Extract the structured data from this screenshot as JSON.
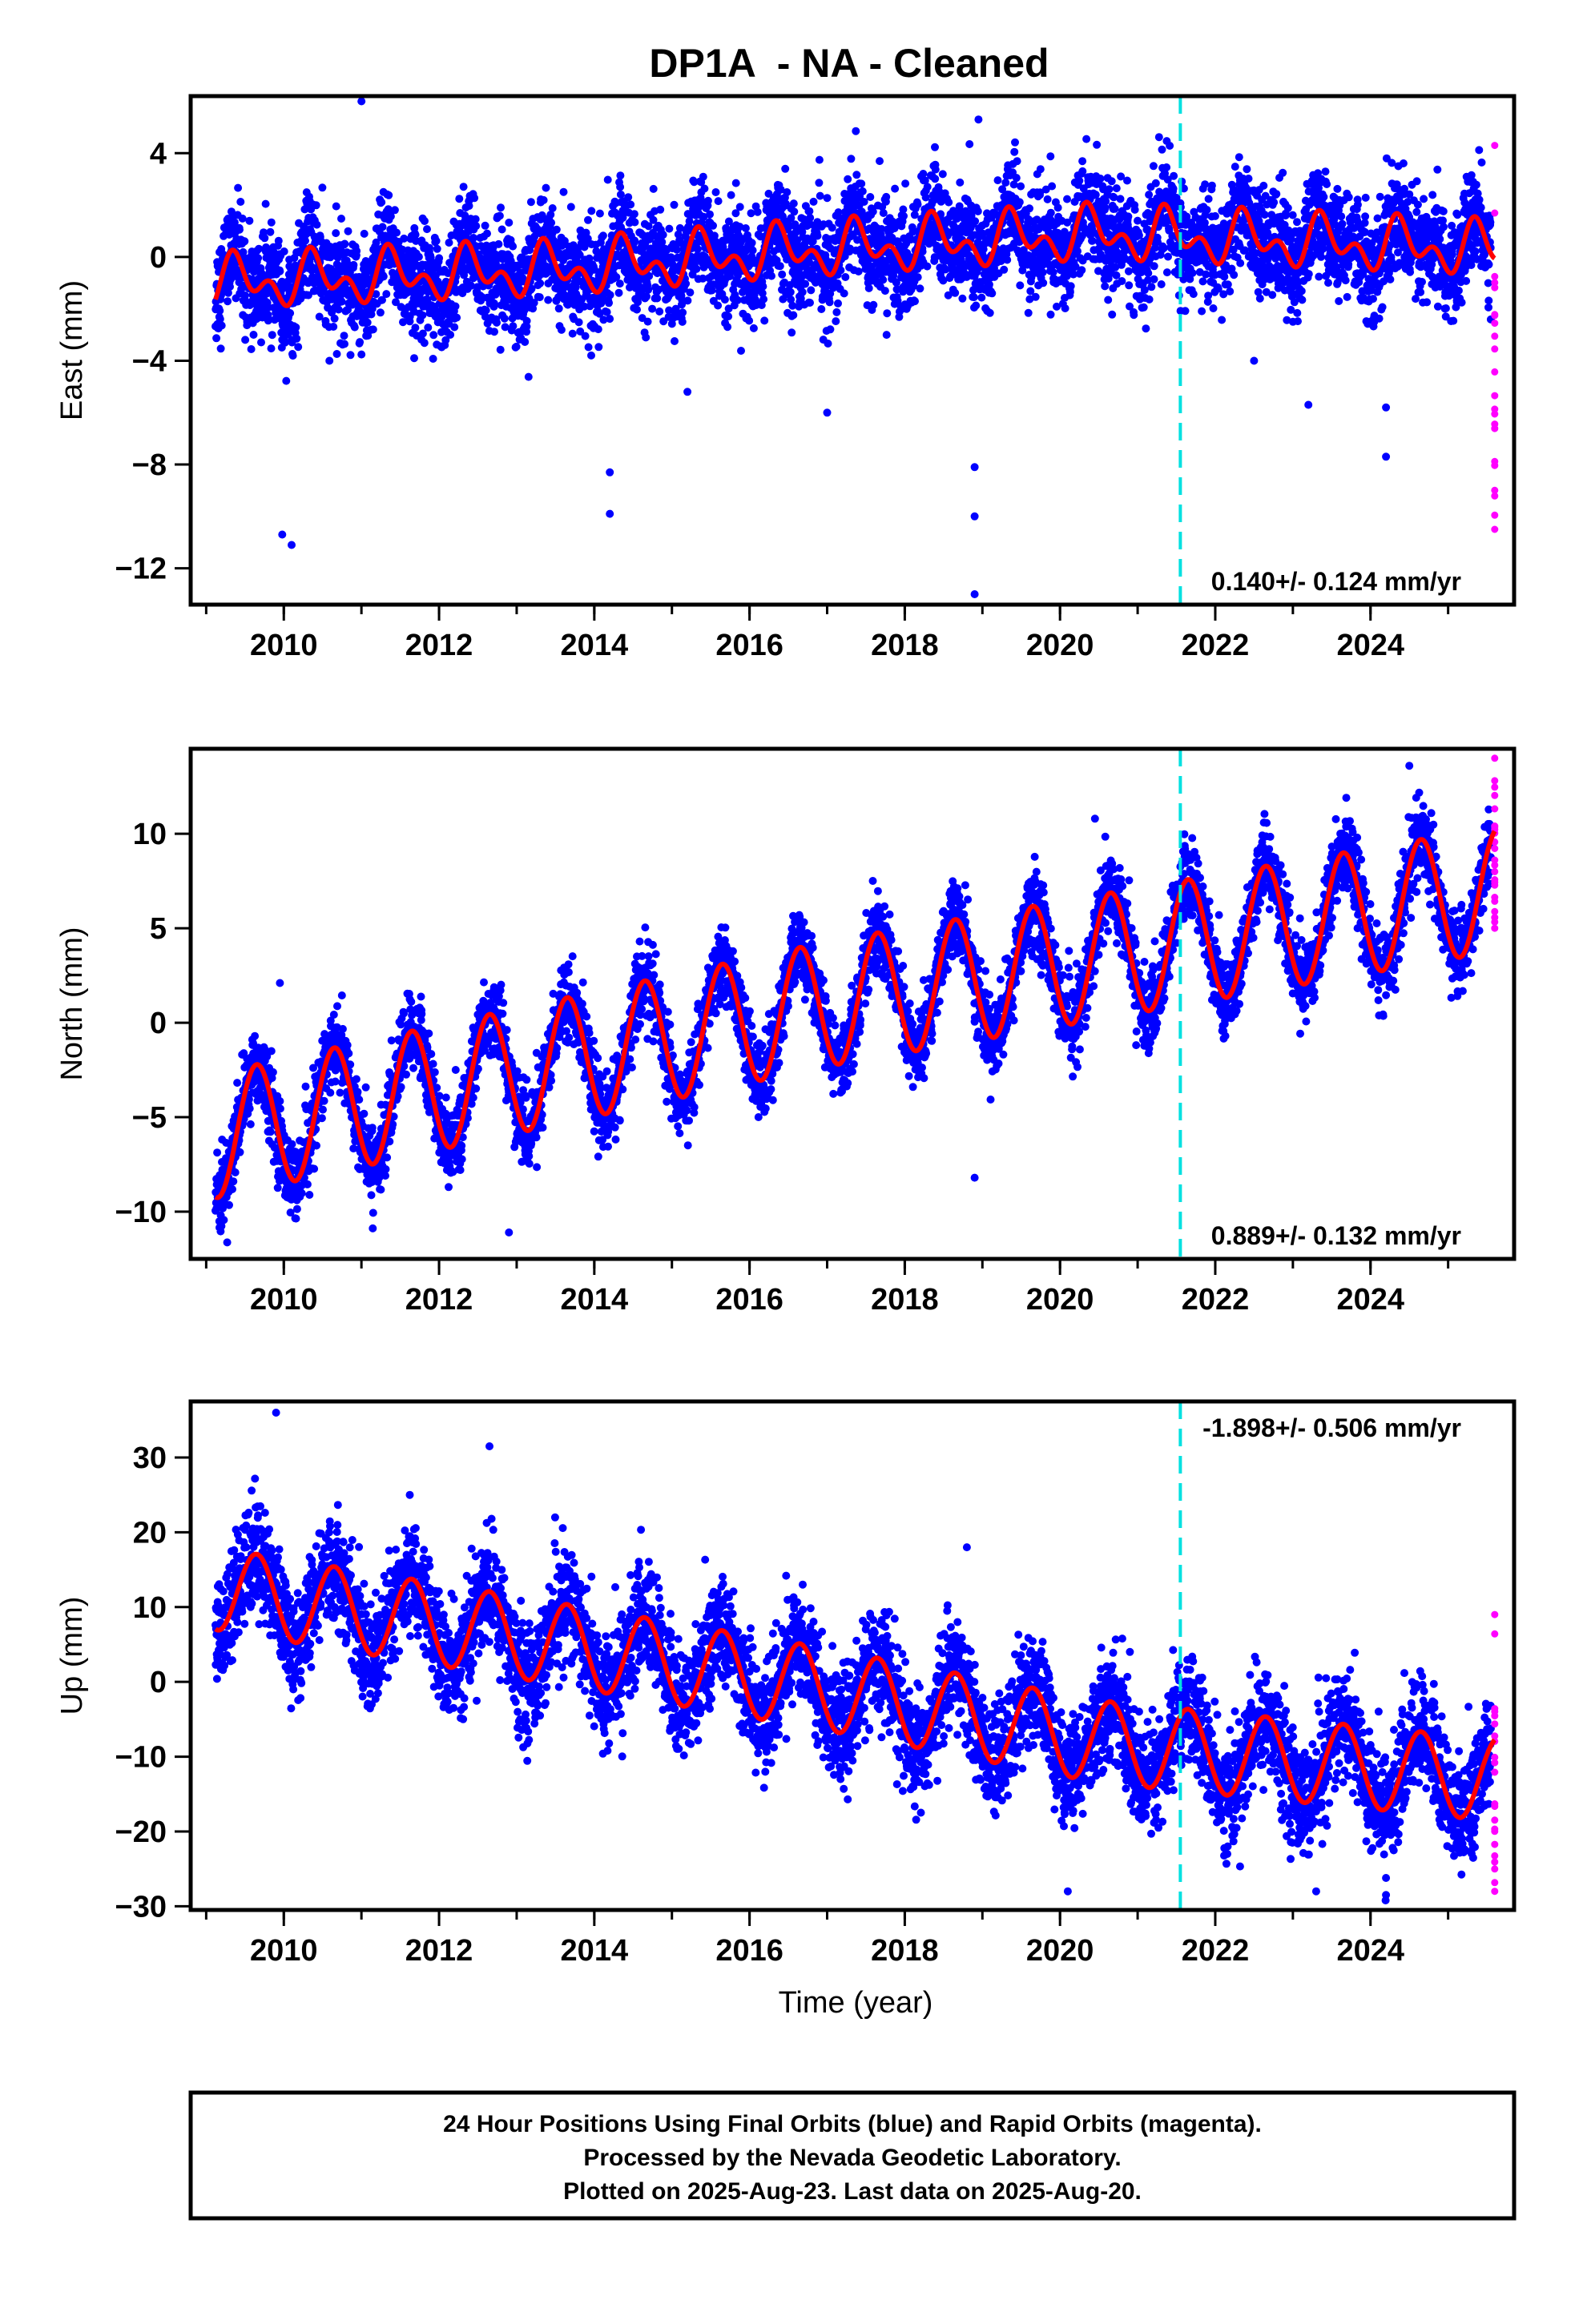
{
  "title": "DP1A  - NA - Cleaned",
  "colors": {
    "final": "#0000ff",
    "rapid": "#ff00ff",
    "model": "#ff0000",
    "break": "#00e0e0"
  },
  "chart_data": [
    {
      "type": "scatter",
      "ylabel": "East (mm)",
      "xlabel": "",
      "xlim": [
        2008.8,
        2025.85
      ],
      "ylim": [
        -13.4,
        6.2
      ],
      "xticks": [
        2010,
        2012,
        2014,
        2016,
        2018,
        2020,
        2022,
        2024
      ],
      "yticks": [
        4,
        0,
        -4,
        -8,
        -12
      ],
      "ytick_labels": [
        "4",
        "0",
        "−4",
        "−8",
        "−12"
      ],
      "rate_label": "0.140+/- 0.124 mm/yr",
      "rate_position": "bottom-right",
      "break_line_x": 2021.55,
      "series": [
        {
          "name": "",
          "role": "final",
          "x_start": 2009.12,
          "x_end": 2025.55,
          "trend": [
            [
              2009.1,
              -1.0
            ],
            [
              2013.5,
              -0.5
            ],
            [
              2016.5,
              0.2
            ],
            [
              2020.5,
              0.9
            ],
            [
              2025.5,
              0.3
            ]
          ],
          "annual_amp": 0.7,
          "semiannual_amp": 0.6,
          "scatter_sd": 1.0
        },
        {
          "name": "",
          "role": "rapid",
          "x": 2025.6,
          "y_range": [
            -10.5,
            4.3
          ]
        },
        {
          "name": "",
          "role": "model"
        }
      ],
      "outliers": [
        [
          2009.98,
          -10.7
        ],
        [
          2010.1,
          -11.1
        ],
        [
          2011.0,
          6.0
        ],
        [
          2014.2,
          -8.3
        ],
        [
          2014.2,
          -9.9
        ],
        [
          2018.9,
          -8.1
        ],
        [
          2018.9,
          -10.0
        ],
        [
          2018.9,
          -13.0
        ],
        [
          2018.95,
          5.3
        ],
        [
          2024.2,
          -7.7
        ],
        [
          2024.2,
          -5.8
        ],
        [
          2015.2,
          -5.2
        ],
        [
          2017.0,
          -6.0
        ],
        [
          2022.5,
          -4.0
        ],
        [
          2023.2,
          -5.7
        ]
      ]
    },
    {
      "type": "scatter",
      "ylabel": "North (mm)",
      "xlabel": "",
      "xlim": [
        2008.8,
        2025.85
      ],
      "ylim": [
        -12.5,
        14.5
      ],
      "xticks": [
        2010,
        2012,
        2014,
        2016,
        2018,
        2020,
        2022,
        2024
      ],
      "yticks": [
        10,
        5,
        0,
        -5,
        -10
      ],
      "ytick_labels": [
        "10",
        "5",
        "0",
        "−5",
        "−10"
      ],
      "rate_label": "0.889+/- 0.132 mm/yr",
      "rate_position": "bottom-right",
      "break_line_x": 2021.55,
      "series": [
        {
          "name": "",
          "role": "final",
          "x_start": 2009.12,
          "x_end": 2025.55,
          "trend": [
            [
              2009.1,
              -6.0
            ],
            [
              2017.0,
              1.0
            ],
            [
              2025.5,
              7.0
            ]
          ],
          "annual_amp": 3.3,
          "semiannual_amp": 0.0,
          "scatter_sd": 1.0
        },
        {
          "name": "",
          "role": "rapid",
          "x": 2025.6,
          "y_range": [
            5.0,
            14.0
          ]
        },
        {
          "name": "",
          "role": "model"
        }
      ],
      "outliers": [
        [
          2009.95,
          2.1
        ],
        [
          2018.9,
          -8.2
        ],
        [
          2012.9,
          -11.1
        ],
        [
          2020.45,
          10.8
        ],
        [
          2024.5,
          13.6
        ]
      ]
    },
    {
      "type": "scatter",
      "ylabel": "Up (mm)",
      "xlabel": "Time (year)",
      "xlim": [
        2008.8,
        2025.85
      ],
      "ylim": [
        -30.5,
        37.5
      ],
      "xticks": [
        2010,
        2012,
        2014,
        2016,
        2018,
        2020,
        2022,
        2024
      ],
      "yticks": [
        30,
        20,
        10,
        0,
        -10,
        -20,
        -30
      ],
      "ytick_labels": [
        "30",
        "20",
        "10",
        "0",
        "−10",
        "−20",
        "−30"
      ],
      "rate_label": "-1.898+/- 0.506 mm/yr",
      "rate_position": "top-right",
      "break_line_x": 2021.55,
      "series": [
        {
          "name": "",
          "role": "final",
          "x_start": 2009.12,
          "x_end": 2025.55,
          "trend": [
            [
              2009.1,
              12.5
            ],
            [
              2013.0,
              6.0
            ],
            [
              2017.0,
              -1.0
            ],
            [
              2020.5,
              -8.0
            ],
            [
              2025.5,
              -13.0
            ]
          ],
          "annual_amp": 5.5,
          "semiannual_amp": 0.0,
          "scatter_sd": 3.6
        },
        {
          "name": "",
          "role": "rapid",
          "x": 2025.6,
          "y_range": [
            -28.0,
            9.0
          ]
        },
        {
          "name": "",
          "role": "model"
        }
      ],
      "outliers": [
        [
          2009.9,
          36.0
        ],
        [
          2012.65,
          31.5
        ],
        [
          2018.8,
          18.0
        ],
        [
          2020.9,
          4.0
        ],
        [
          2020.1,
          -28.0
        ],
        [
          2023.3,
          -28.0
        ],
        [
          2024.2,
          -28.5
        ]
      ]
    }
  ],
  "footer": {
    "lines": [
      "24 Hour Positions Using Final Orbits (blue) and Rapid Orbits (magenta).",
      "Processed by the Nevada Geodetic Laboratory.",
      "Plotted on 2025-Aug-23. Last data on 2025-Aug-20."
    ]
  }
}
